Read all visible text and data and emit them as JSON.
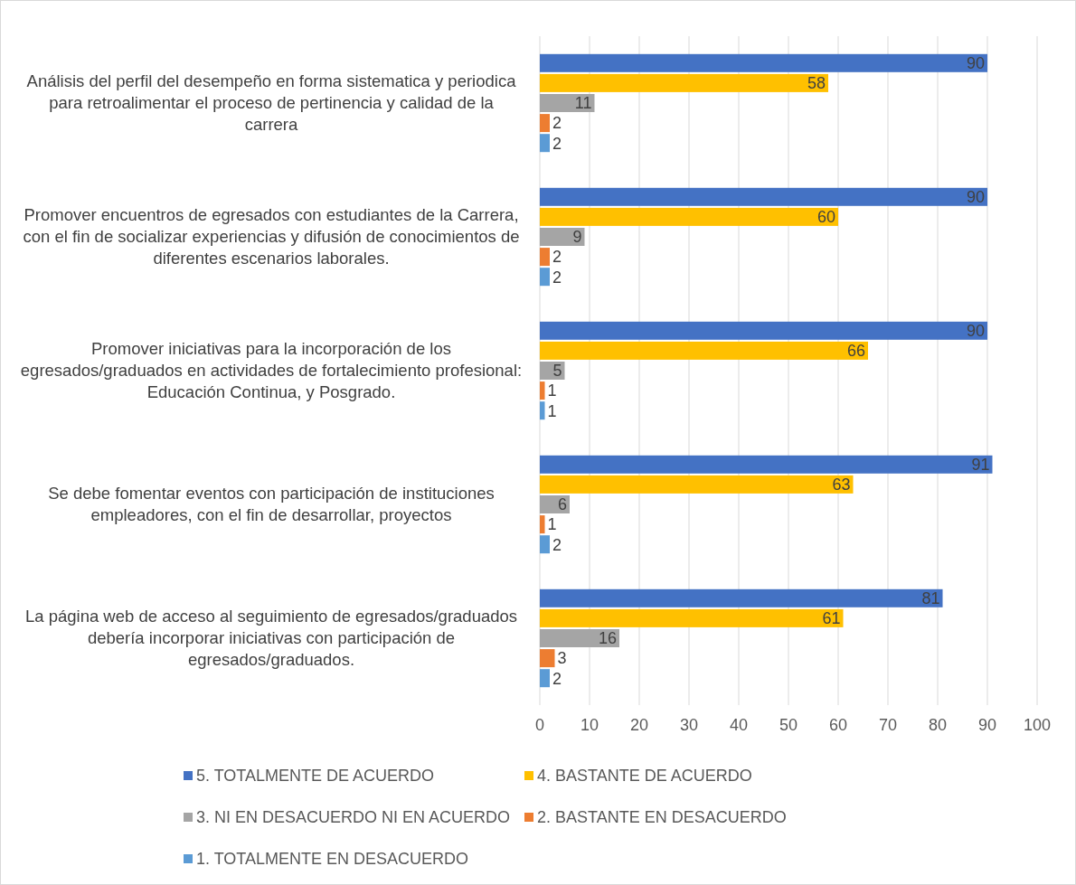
{
  "chart_data": {
    "type": "bar",
    "orientation": "horizontal",
    "categories": [
      "Análisis del perfil del desempeño en forma sistematica y periodica para retroalimentar el proceso de pertinencia y calidad de la carrera",
      "Promover encuentros de egresados con estudiantes de la Carrera, con el fin de socializar experiencias y difusión de conocimientos de diferentes escenarios laborales.",
      "Promover iniciativas para la incorporación de los egresados/graduados en actividades de fortalecimiento profesional: Educación Continua, y Posgrado.",
      "Se debe fomentar eventos con participación de instituciones empleadores, con el fin de desarrollar, proyectos",
      "La página web de acceso al seguimiento de egresados/graduados debería incorporar iniciativas con participación de egresados/graduados."
    ],
    "series": [
      {
        "name": "5. TOTALMENTE DE ACUERDO",
        "color": "#4472c4",
        "values": [
          90,
          90,
          90,
          91,
          81
        ]
      },
      {
        "name": "4. BASTANTE DE ACUERDO",
        "color": "#ffc000",
        "values": [
          58,
          60,
          66,
          63,
          61
        ]
      },
      {
        "name": "3. NI EN DESACUERDO NI EN ACUERDO",
        "color": "#a5a5a5",
        "values": [
          11,
          9,
          5,
          6,
          16
        ]
      },
      {
        "name": "2. BASTANTE EN DESACUERDO",
        "color": "#ed7d31",
        "values": [
          2,
          2,
          1,
          1,
          3
        ]
      },
      {
        "name": "1. TOTALMENTE EN DESACUERDO",
        "color": "#5b9bd5",
        "values": [
          2,
          2,
          1,
          2,
          2
        ]
      }
    ],
    "xlim": [
      0,
      100
    ],
    "xticks": [
      0,
      10,
      20,
      30,
      40,
      50,
      60,
      70,
      80,
      90,
      100
    ],
    "grid": "x",
    "data_labels": true,
    "legend": "bottom"
  }
}
